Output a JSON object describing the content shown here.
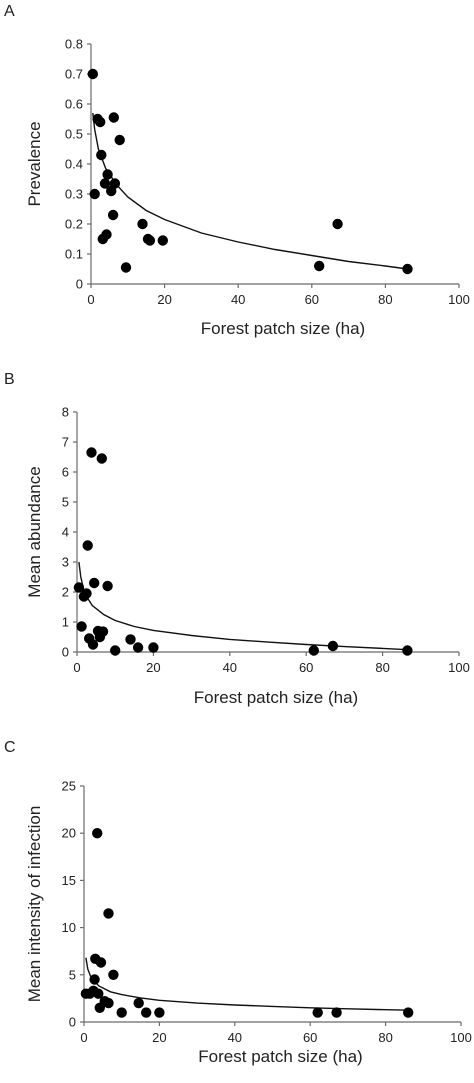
{
  "chart_data": [
    {
      "type": "scatter",
      "panel_label": "A",
      "xlabel": "Forest patch size (ha)",
      "ylabel": "Prevalence",
      "xlim": [
        0,
        100
      ],
      "ylim": [
        0,
        0.8
      ],
      "xticks": [
        0,
        20,
        40,
        60,
        80,
        100
      ],
      "yticks": [
        0,
        0.1,
        0.2,
        0.3,
        0.4,
        0.5,
        0.6,
        0.7,
        0.8
      ],
      "xtick_labels": [
        "0",
        "20",
        "40",
        "60",
        "80",
        "100"
      ],
      "ytick_labels": [
        "0",
        "0.1",
        "0.2",
        "0.3",
        "0.4",
        "0.5",
        "0.6",
        "0.7",
        "0.8"
      ],
      "grid": false,
      "trendline": {
        "type": "logarithmic",
        "points": [
          [
            0.5,
            0.57
          ],
          [
            1,
            0.515
          ],
          [
            2,
            0.45
          ],
          [
            4,
            0.385
          ],
          [
            7,
            0.33
          ],
          [
            10,
            0.29
          ],
          [
            15,
            0.245
          ],
          [
            20,
            0.215
          ],
          [
            30,
            0.17
          ],
          [
            40,
            0.14
          ],
          [
            50,
            0.115
          ],
          [
            60,
            0.095
          ],
          [
            70,
            0.075
          ],
          [
            80,
            0.06
          ],
          [
            86,
            0.05
          ]
        ]
      },
      "points": [
        {
          "x": 0.5,
          "y": 0.7
        },
        {
          "x": 1,
          "y": 0.3
        },
        {
          "x": 1.8,
          "y": 0.55
        },
        {
          "x": 2.5,
          "y": 0.54
        },
        {
          "x": 2.8,
          "y": 0.43
        },
        {
          "x": 3.2,
          "y": 0.15
        },
        {
          "x": 3.8,
          "y": 0.335
        },
        {
          "x": 4.2,
          "y": 0.165
        },
        {
          "x": 4.5,
          "y": 0.365
        },
        {
          "x": 5.5,
          "y": 0.31
        },
        {
          "x": 6,
          "y": 0.23
        },
        {
          "x": 6.2,
          "y": 0.555
        },
        {
          "x": 6.5,
          "y": 0.335
        },
        {
          "x": 7.8,
          "y": 0.48
        },
        {
          "x": 9.5,
          "y": 0.055
        },
        {
          "x": 14,
          "y": 0.2
        },
        {
          "x": 15.5,
          "y": 0.15
        },
        {
          "x": 16,
          "y": 0.145
        },
        {
          "x": 19.5,
          "y": 0.145
        },
        {
          "x": 62,
          "y": 0.06
        },
        {
          "x": 67,
          "y": 0.2
        },
        {
          "x": 86,
          "y": 0.05
        }
      ]
    },
    {
      "type": "scatter",
      "panel_label": "B",
      "xlabel": "Forest patch size (ha)",
      "ylabel": "Mean abundance",
      "xlim": [
        0,
        100
      ],
      "ylim": [
        0,
        8
      ],
      "xticks": [
        0,
        20,
        40,
        60,
        80,
        100
      ],
      "yticks": [
        0,
        1,
        2,
        3,
        4,
        5,
        6,
        7,
        8
      ],
      "xtick_labels": [
        "0",
        "20",
        "40",
        "60",
        "80",
        "100"
      ],
      "ytick_labels": [
        "0",
        "1",
        "2",
        "3",
        "4",
        "5",
        "6",
        "7",
        "8"
      ],
      "grid": false,
      "trendline": {
        "type": "logarithmic",
        "points": [
          [
            0.5,
            3.0
          ],
          [
            1,
            2.5
          ],
          [
            2,
            1.95
          ],
          [
            4,
            1.55
          ],
          [
            7,
            1.25
          ],
          [
            10,
            1.05
          ],
          [
            15,
            0.85
          ],
          [
            20,
            0.72
          ],
          [
            30,
            0.55
          ],
          [
            40,
            0.42
          ],
          [
            50,
            0.33
          ],
          [
            60,
            0.25
          ],
          [
            70,
            0.18
          ],
          [
            80,
            0.12
          ],
          [
            86,
            0.08
          ]
        ]
      },
      "points": [
        {
          "x": 0.5,
          "y": 2.15
        },
        {
          "x": 1.2,
          "y": 0.85
        },
        {
          "x": 1.8,
          "y": 1.85
        },
        {
          "x": 2.5,
          "y": 1.95
        },
        {
          "x": 2.8,
          "y": 3.55
        },
        {
          "x": 3.2,
          "y": 0.45
        },
        {
          "x": 3.8,
          "y": 6.65
        },
        {
          "x": 4.2,
          "y": 0.25
        },
        {
          "x": 4.5,
          "y": 2.3
        },
        {
          "x": 5.5,
          "y": 0.7
        },
        {
          "x": 6,
          "y": 0.5
        },
        {
          "x": 6.5,
          "y": 6.45
        },
        {
          "x": 6.8,
          "y": 0.68
        },
        {
          "x": 8,
          "y": 2.2
        },
        {
          "x": 10,
          "y": 0.05
        },
        {
          "x": 14,
          "y": 0.42
        },
        {
          "x": 16,
          "y": 0.15
        },
        {
          "x": 20,
          "y": 0.15
        },
        {
          "x": 62,
          "y": 0.05
        },
        {
          "x": 67,
          "y": 0.2
        },
        {
          "x": 86.5,
          "y": 0.05
        }
      ]
    },
    {
      "type": "scatter",
      "panel_label": "C",
      "xlabel": "Forest patch size (ha)",
      "ylabel": "Mean intensity of infection",
      "xlim": [
        0,
        100
      ],
      "ylim": [
        0,
        25
      ],
      "xticks": [
        0,
        20,
        40,
        60,
        80,
        100
      ],
      "yticks": [
        0,
        5,
        10,
        15,
        20,
        25
      ],
      "xtick_labels": [
        "0",
        "20",
        "40",
        "60",
        "80",
        "100"
      ],
      "ytick_labels": [
        "0",
        "5",
        "10",
        "15",
        "20",
        "25"
      ],
      "grid": false,
      "trendline": {
        "type": "power",
        "points": [
          [
            0.5,
            6.8
          ],
          [
            1,
            5.6
          ],
          [
            2,
            4.6
          ],
          [
            4,
            3.8
          ],
          [
            7,
            3.2
          ],
          [
            10,
            2.9
          ],
          [
            15,
            2.55
          ],
          [
            20,
            2.3
          ],
          [
            30,
            2.0
          ],
          [
            40,
            1.8
          ],
          [
            50,
            1.65
          ],
          [
            60,
            1.5
          ],
          [
            70,
            1.4
          ],
          [
            80,
            1.3
          ],
          [
            86,
            1.25
          ]
        ]
      },
      "points": [
        {
          "x": 0.5,
          "y": 3.0
        },
        {
          "x": 1.5,
          "y": 3.0
        },
        {
          "x": 2.5,
          "y": 3.3
        },
        {
          "x": 2.8,
          "y": 4.5
        },
        {
          "x": 3.0,
          "y": 6.7
        },
        {
          "x": 3.5,
          "y": 20.0
        },
        {
          "x": 3.8,
          "y": 3.0
        },
        {
          "x": 4.2,
          "y": 1.5
        },
        {
          "x": 4.5,
          "y": 6.3
        },
        {
          "x": 5.5,
          "y": 2.2
        },
        {
          "x": 6.5,
          "y": 11.5
        },
        {
          "x": 6.5,
          "y": 2.0
        },
        {
          "x": 7.8,
          "y": 5.0
        },
        {
          "x": 10,
          "y": 1.0
        },
        {
          "x": 14.5,
          "y": 2.0
        },
        {
          "x": 16.5,
          "y": 1.0
        },
        {
          "x": 20,
          "y": 1.0
        },
        {
          "x": 62,
          "y": 1.0
        },
        {
          "x": 67,
          "y": 1.0
        },
        {
          "x": 86,
          "y": 1.0
        }
      ]
    }
  ]
}
